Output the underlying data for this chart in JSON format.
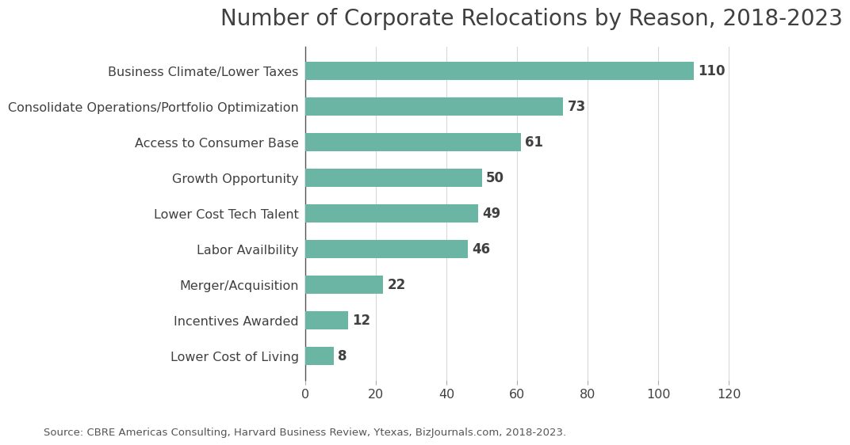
{
  "title": "Number of Corporate Relocations by Reason, 2018-2023",
  "categories": [
    "Lower Cost of Living",
    "Incentives Awarded",
    "Merger/Acquisition",
    "Labor Availbility",
    "Lower Cost Tech Talent",
    "Growth Opportunity",
    "Access to Consumer Base",
    "Consolidate Operations/Portfolio Optimization",
    "Business Climate/Lower Taxes"
  ],
  "values": [
    8,
    12,
    22,
    46,
    49,
    50,
    61,
    73,
    110
  ],
  "bar_color": "#6bb5a5",
  "label_color": "#404040",
  "title_fontsize": 20,
  "tick_label_fontsize": 11.5,
  "value_label_fontsize": 12,
  "source_text": "Source: CBRE Americas Consulting, Harvard Business Review, Ytexas, BizJournals.com, 2018-2023.",
  "source_fontsize": 9.5,
  "xlim": [
    0,
    128
  ],
  "xticks": [
    0,
    20,
    40,
    60,
    80,
    100,
    120
  ],
  "background_color": "#ffffff",
  "grid_color": "#d8d8d8",
  "spine_color": "#aaaaaa"
}
